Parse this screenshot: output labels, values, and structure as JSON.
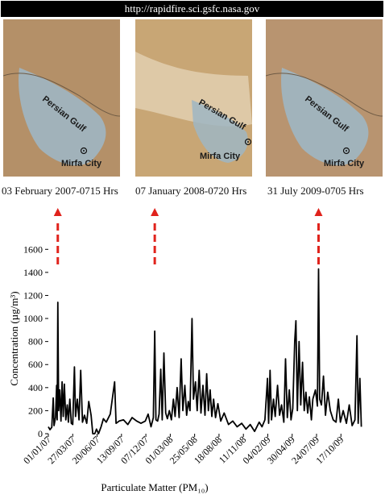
{
  "header": {
    "url": "http://rapidfire.sci.gsfc.nasa.gov"
  },
  "panels": [
    {
      "gulf_label": "Persian Gulf",
      "city_label": "Mirfa City",
      "caption": "03 February 2007-0715 Hrs",
      "tint": "#b49068"
    },
    {
      "gulf_label": "Persian Gulf",
      "city_label": "Mirfa City",
      "caption": "07 January 2008-0720 Hrs",
      "tint": "#c8a675"
    },
    {
      "gulf_label": "Persian Gulf",
      "city_label": "Mirfa City",
      "caption": "31 July 2009-0705 Hrs",
      "tint": "#b89470"
    }
  ],
  "colors": {
    "line": "#000000",
    "arrow": "#e0231c",
    "water": "#9fb6c3"
  },
  "chart_data": {
    "type": "line",
    "ylabel": "Concentration (µg/m³)",
    "xlabel": "Particulate Matter (PM₁₀)",
    "ylim": [
      0,
      1700
    ],
    "yticks": [
      0,
      200,
      400,
      600,
      800,
      1000,
      1200,
      1400,
      1600
    ],
    "xticks": [
      "01/01/07",
      "27/03/07",
      "20/06/07",
      "13/09/07",
      "07/12/07",
      "01/03/08",
      "25/05/08",
      "18/08/08",
      "11/11/08",
      "04/02/09",
      "30/04/09",
      "24/07/09",
      "17/10/09"
    ],
    "events": [
      {
        "date": "2007-02-03",
        "caption_index": 0
      },
      {
        "date": "2008-01-07",
        "caption_index": 1
      },
      {
        "date": "2009-07-31",
        "caption_index": 2
      }
    ],
    "series": [
      {
        "points": [
          [
            "2007-01-01",
            60
          ],
          [
            "2007-01-07",
            35
          ],
          [
            "2007-01-13",
            55
          ],
          [
            "2007-01-18",
            310
          ],
          [
            "2007-01-21",
            70
          ],
          [
            "2007-01-26",
            140
          ],
          [
            "2007-01-30",
            420
          ],
          [
            "2007-02-01",
            120
          ],
          [
            "2007-02-03",
            1140
          ],
          [
            "2007-02-06",
            200
          ],
          [
            "2007-02-10",
            380
          ],
          [
            "2007-02-14",
            110
          ],
          [
            "2007-02-18",
            450
          ],
          [
            "2007-02-22",
            150
          ],
          [
            "2007-02-26",
            430
          ],
          [
            "2007-03-03",
            120
          ],
          [
            "2007-03-08",
            250
          ],
          [
            "2007-03-12",
            100
          ],
          [
            "2007-03-17",
            300
          ],
          [
            "2007-03-22",
            90
          ],
          [
            "2007-03-27",
            80
          ],
          [
            "2007-04-02",
            580
          ],
          [
            "2007-04-06",
            150
          ],
          [
            "2007-04-12",
            300
          ],
          [
            "2007-04-18",
            120
          ],
          [
            "2007-04-24",
            550
          ],
          [
            "2007-04-30",
            100
          ],
          [
            "2007-05-07",
            160
          ],
          [
            "2007-05-15",
            90
          ],
          [
            "2007-05-22",
            280
          ],
          [
            "2007-05-30",
            160
          ],
          [
            "2007-06-05",
            0
          ],
          [
            "2007-06-12",
            0
          ],
          [
            "2007-06-18",
            40
          ],
          [
            "2007-06-25",
            0
          ],
          [
            "2007-07-04",
            60
          ],
          [
            "2007-07-12",
            130
          ],
          [
            "2007-07-22",
            100
          ],
          [
            "2007-08-05",
            170
          ],
          [
            "2007-08-20",
            450
          ],
          [
            "2007-08-25",
            90
          ],
          [
            "2007-09-05",
            110
          ],
          [
            "2007-09-20",
            120
          ],
          [
            "2007-10-05",
            80
          ],
          [
            "2007-10-20",
            140
          ],
          [
            "2007-11-05",
            110
          ],
          [
            "2007-11-20",
            90
          ],
          [
            "2007-12-05",
            110
          ],
          [
            "2007-12-15",
            170
          ],
          [
            "2007-12-25",
            60
          ],
          [
            "2008-01-02",
            140
          ],
          [
            "2008-01-07",
            890
          ],
          [
            "2008-01-11",
            120
          ],
          [
            "2008-01-17",
            110
          ],
          [
            "2008-01-22",
            170
          ],
          [
            "2008-01-28",
            560
          ],
          [
            "2008-02-02",
            120
          ],
          [
            "2008-02-08",
            700
          ],
          [
            "2008-02-14",
            180
          ],
          [
            "2008-02-20",
            130
          ],
          [
            "2008-02-27",
            200
          ],
          [
            "2008-03-05",
            120
          ],
          [
            "2008-03-12",
            300
          ],
          [
            "2008-03-18",
            150
          ],
          [
            "2008-03-25",
            400
          ],
          [
            "2008-04-01",
            140
          ],
          [
            "2008-04-08",
            650
          ],
          [
            "2008-04-14",
            200
          ],
          [
            "2008-04-21",
            420
          ],
          [
            "2008-04-27",
            160
          ],
          [
            "2008-05-03",
            280
          ],
          [
            "2008-05-09",
            200
          ],
          [
            "2008-05-16",
            1000
          ],
          [
            "2008-05-21",
            300
          ],
          [
            "2008-05-28",
            450
          ],
          [
            "2008-06-03",
            200
          ],
          [
            "2008-06-10",
            550
          ],
          [
            "2008-06-16",
            180
          ],
          [
            "2008-06-23",
            420
          ],
          [
            "2008-06-30",
            160
          ],
          [
            "2008-07-06",
            520
          ],
          [
            "2008-07-12",
            200
          ],
          [
            "2008-07-18",
            380
          ],
          [
            "2008-07-24",
            150
          ],
          [
            "2008-07-30",
            300
          ],
          [
            "2008-08-06",
            140
          ],
          [
            "2008-08-14",
            260
          ],
          [
            "2008-08-24",
            110
          ],
          [
            "2008-09-05",
            180
          ],
          [
            "2008-09-20",
            80
          ],
          [
            "2008-10-05",
            110
          ],
          [
            "2008-10-20",
            60
          ],
          [
            "2008-11-05",
            90
          ],
          [
            "2008-11-20",
            40
          ],
          [
            "2008-12-05",
            80
          ],
          [
            "2008-12-20",
            20
          ],
          [
            "2009-01-05",
            100
          ],
          [
            "2009-01-15",
            60
          ],
          [
            "2009-01-25",
            120
          ],
          [
            "2009-02-03",
            480
          ],
          [
            "2009-02-07",
            90
          ],
          [
            "2009-02-12",
            550
          ],
          [
            "2009-02-17",
            120
          ],
          [
            "2009-02-24",
            300
          ],
          [
            "2009-03-02",
            150
          ],
          [
            "2009-03-10",
            420
          ],
          [
            "2009-03-17",
            160
          ],
          [
            "2009-03-24",
            250
          ],
          [
            "2009-04-01",
            100
          ],
          [
            "2009-04-07",
            650
          ],
          [
            "2009-04-13",
            140
          ],
          [
            "2009-04-20",
            380
          ],
          [
            "2009-04-26",
            120
          ],
          [
            "2009-05-02",
            220
          ],
          [
            "2009-05-09",
            800
          ],
          [
            "2009-05-13",
            980
          ],
          [
            "2009-05-18",
            200
          ],
          [
            "2009-05-24",
            800
          ],
          [
            "2009-05-30",
            250
          ],
          [
            "2009-06-05",
            620
          ],
          [
            "2009-06-11",
            200
          ],
          [
            "2009-06-17",
            360
          ],
          [
            "2009-06-23",
            180
          ],
          [
            "2009-06-29",
            320
          ],
          [
            "2009-07-06",
            120
          ],
          [
            "2009-07-11",
            300
          ],
          [
            "2009-07-20",
            380
          ],
          [
            "2009-07-27",
            240
          ],
          [
            "2009-07-31",
            1430
          ],
          [
            "2009-08-04",
            300
          ],
          [
            "2009-08-10",
            250
          ],
          [
            "2009-08-17",
            500
          ],
          [
            "2009-08-24",
            160
          ],
          [
            "2009-09-01",
            360
          ],
          [
            "2009-09-10",
            200
          ],
          [
            "2009-09-20",
            120
          ],
          [
            "2009-09-30",
            100
          ],
          [
            "2009-10-08",
            300
          ],
          [
            "2009-10-15",
            100
          ],
          [
            "2009-10-25",
            200
          ],
          [
            "2009-11-05",
            90
          ],
          [
            "2009-11-15",
            250
          ],
          [
            "2009-11-25",
            70
          ],
          [
            "2009-12-05",
            120
          ],
          [
            "2009-12-12",
            850
          ],
          [
            "2009-12-16",
            90
          ],
          [
            "2009-12-22",
            480
          ],
          [
            "2009-12-27",
            60
          ]
        ]
      }
    ]
  }
}
